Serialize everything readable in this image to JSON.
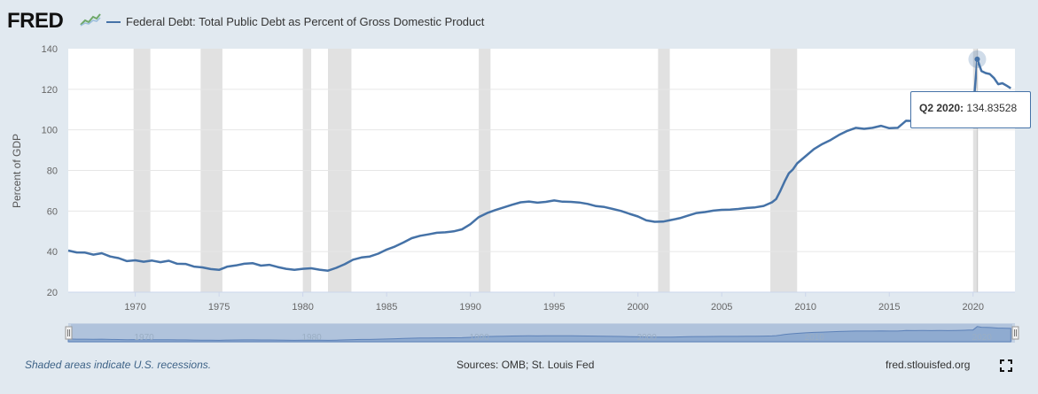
{
  "header": {
    "logo_text": "FRED",
    "series_title": "Federal Debt: Total Public Debt as Percent of Gross Domestic Product",
    "series_color": "#4572a7"
  },
  "chart_data": {
    "type": "line",
    "ylabel": "Percent of GDP",
    "xlabel": "",
    "ylim": [
      20,
      140
    ],
    "xlim": [
      1966,
      2022.5
    ],
    "yticks": [
      20,
      40,
      60,
      80,
      100,
      120,
      140
    ],
    "xticks": [
      1970,
      1975,
      1980,
      1985,
      1990,
      1995,
      2000,
      2005,
      2010,
      2015,
      2020
    ],
    "grid": "horizontal",
    "recessions": [
      [
        1969.9,
        1970.9
      ],
      [
        1973.9,
        1975.2
      ],
      [
        1980.0,
        1980.5
      ],
      [
        1981.5,
        1982.9
      ],
      [
        1990.5,
        1991.2
      ],
      [
        2001.2,
        2001.9
      ],
      [
        2007.9,
        2009.5
      ],
      [
        2020.0,
        2020.3
      ]
    ],
    "series": [
      {
        "name": "Federal Debt: Total Public Debt as Percent of Gross Domestic Product",
        "x": [
          1966.0,
          1966.5,
          1967.0,
          1967.5,
          1968.0,
          1968.5,
          1969.0,
          1969.5,
          1970.0,
          1970.5,
          1971.0,
          1971.5,
          1972.0,
          1972.5,
          1973.0,
          1973.5,
          1974.0,
          1974.5,
          1975.0,
          1975.5,
          1976.0,
          1976.5,
          1977.0,
          1977.5,
          1978.0,
          1978.5,
          1979.0,
          1979.5,
          1980.0,
          1980.5,
          1981.0,
          1981.5,
          1982.0,
          1982.5,
          1983.0,
          1983.5,
          1984.0,
          1984.5,
          1985.0,
          1985.5,
          1986.0,
          1986.5,
          1987.0,
          1987.5,
          1988.0,
          1988.5,
          1989.0,
          1989.5,
          1990.0,
          1990.5,
          1991.0,
          1991.5,
          1992.0,
          1992.5,
          1993.0,
          1993.5,
          1994.0,
          1994.5,
          1995.0,
          1995.5,
          1996.0,
          1996.5,
          1997.0,
          1997.5,
          1998.0,
          1998.5,
          1999.0,
          1999.5,
          2000.0,
          2000.5,
          2001.0,
          2001.5,
          2002.0,
          2002.5,
          2003.0,
          2003.5,
          2004.0,
          2004.5,
          2005.0,
          2005.5,
          2006.0,
          2006.5,
          2007.0,
          2007.5,
          2008.0,
          2008.25,
          2008.5,
          2008.75,
          2009.0,
          2009.25,
          2009.5,
          2010.0,
          2010.5,
          2011.0,
          2011.5,
          2012.0,
          2012.5,
          2013.0,
          2013.5,
          2014.0,
          2014.5,
          2015.0,
          2015.5,
          2016.0,
          2016.5,
          2017.0,
          2017.5,
          2018.0,
          2018.5,
          2019.0,
          2019.5,
          2019.75,
          2020.0,
          2020.25,
          2020.5,
          2020.75,
          2021.0,
          2021.25,
          2021.5,
          2021.75,
          2022.0,
          2022.25
        ],
        "values": [
          40.5,
          39.6,
          39.5,
          38.5,
          39.2,
          37.6,
          36.8,
          35.3,
          35.7,
          35.0,
          35.6,
          34.8,
          35.5,
          34.0,
          33.9,
          32.6,
          32.2,
          31.4,
          31.0,
          32.6,
          33.2,
          34.0,
          34.3,
          33.1,
          33.5,
          32.4,
          31.5,
          31.0,
          31.5,
          31.8,
          31.1,
          30.6,
          32.0,
          33.8,
          36.0,
          37.1,
          37.6,
          39.0,
          41.0,
          42.5,
          44.5,
          46.6,
          47.8,
          48.5,
          49.3,
          49.5,
          50.0,
          51.0,
          53.5,
          57.0,
          59.0,
          60.5,
          61.8,
          63.1,
          64.3,
          64.7,
          64.1,
          64.5,
          65.2,
          64.6,
          64.5,
          64.2,
          63.5,
          62.4,
          62.0,
          61.0,
          60.0,
          58.6,
          57.3,
          55.4,
          54.7,
          54.8,
          55.6,
          56.5,
          57.8,
          59.0,
          59.5,
          60.2,
          60.6,
          60.7,
          61.0,
          61.5,
          61.8,
          62.5,
          64.3,
          65.9,
          70.0,
          74.5,
          78.5,
          80.5,
          83.5,
          87.0,
          90.5,
          93.0,
          95.0,
          97.5,
          99.5,
          101.0,
          100.5,
          101.0,
          102.0,
          100.8,
          101.0,
          104.5,
          104.3,
          104.5,
          104.0,
          104.5,
          104.3,
          105.0,
          106.5,
          108.0,
          108.9,
          134.8,
          129.0,
          128.0,
          127.5,
          125.5,
          122.5,
          123.0,
          121.8,
          120.5
        ]
      }
    ]
  },
  "tooltip": {
    "label": "Q2 2020:",
    "value": "134.83528"
  },
  "navigator": {
    "years": [
      "1970",
      "1980",
      "1990",
      "2000",
      "2010",
      "2020"
    ]
  },
  "footer": {
    "note": "Shaded areas indicate U.S. recessions.",
    "source": "Sources: OMB; St. Louis Fed",
    "site": "fred.stlouisfed.org"
  },
  "icons": {
    "fullscreen": "fullscreen-icon",
    "logo_graph": "fred-graph-icon"
  }
}
